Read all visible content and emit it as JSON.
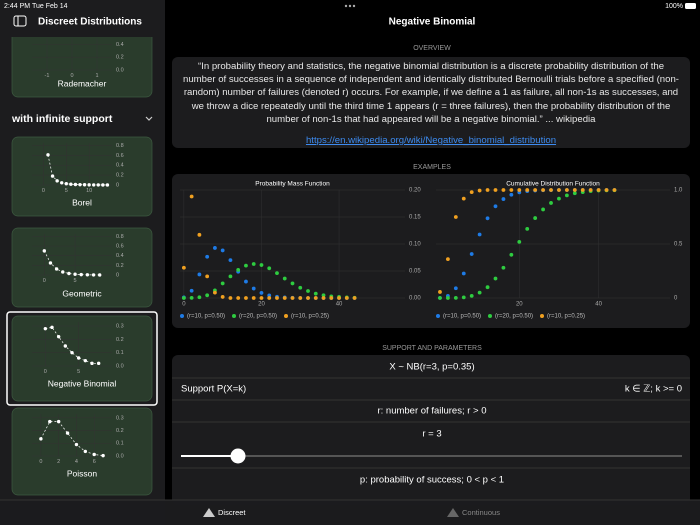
{
  "status_bar": {
    "time": "2:44 PM",
    "date": "Tue Feb 14",
    "battery": "100%"
  },
  "sidebar": {
    "title": "Discreet Distributions",
    "section": "with infinite support",
    "items": [
      {
        "label": "Rademacher",
        "chart": {
          "type": "line",
          "color": "#ffffff",
          "grid": true,
          "xlim": [
            -1.6,
            1.6
          ],
          "ylim": [
            0,
            0.5
          ],
          "xticks": [
            -1,
            0,
            1
          ],
          "yticks": [
            0.4,
            0.2,
            {
              "value": 0,
              "label": "0.0"
            }
          ]
        }
      },
      {
        "label": "Borel",
        "chart": {
          "type": "line",
          "color": "#ffffff",
          "grid": true,
          "xlim": [
            -2.5,
            15
          ],
          "ylim": [
            0,
            0.85
          ],
          "xticks": [
            0,
            5,
            10
          ],
          "yticks": [
            0.8,
            0.6,
            0.4,
            0.2,
            0
          ],
          "x": [
            1,
            2,
            3,
            4,
            5,
            6,
            7,
            8,
            9,
            10,
            11,
            12,
            13,
            14
          ],
          "values": [
            0.61,
            0.18,
            0.084,
            0.045,
            0.026,
            0.016,
            0.01,
            0.007,
            0.005,
            0.003,
            0.002,
            0.002,
            0.001,
            0.001
          ]
        }
      },
      {
        "label": "Geometric",
        "chart": {
          "type": "line",
          "color": "#ffffff",
          "grid": true,
          "xlim": [
            -2,
            11
          ],
          "ylim": [
            0,
            0.85
          ],
          "xticks": [
            0,
            5
          ],
          "yticks": [
            0.8,
            0.6,
            0.4,
            0.2,
            0
          ],
          "x": [
            0,
            1,
            2,
            3,
            4,
            5,
            6,
            7,
            8,
            9
          ],
          "values": [
            0.5,
            0.25,
            0.125,
            0.0625,
            0.031,
            0.016,
            0.008,
            0.004,
            0.002,
            0.001
          ]
        }
      },
      {
        "label": "Negative Binomial",
        "chart": {
          "type": "line",
          "color": "#ffffff",
          "grid": true,
          "xlim": [
            -2,
            10
          ],
          "ylim": [
            0,
            0.33
          ],
          "xticks": [
            0,
            5
          ],
          "yticks": [
            0.3,
            0.2,
            0.1,
            {
              "value": 0,
              "label": "0.0"
            }
          ],
          "x": [
            0,
            1,
            2,
            3,
            4,
            5,
            6,
            7,
            8
          ],
          "values": [
            0.28,
            0.29,
            0.22,
            0.15,
            0.1,
            0.06,
            0.04,
            0.02,
            0.02
          ]
        }
      },
      {
        "label": "Poisson",
        "chart": {
          "type": "line",
          "color": "#ffffff",
          "grid": true,
          "xlim": [
            -1,
            8
          ],
          "ylim": [
            0,
            0.33
          ],
          "xticks": [
            0,
            2,
            4,
            6
          ],
          "yticks": [
            0.3,
            0.2,
            0.1,
            {
              "value": 0,
              "label": "0.0"
            }
          ],
          "x": [
            0,
            1,
            2,
            3,
            4,
            5,
            6,
            7
          ],
          "values": [
            0.135,
            0.27,
            0.27,
            0.18,
            0.09,
            0.036,
            0.012,
            0.003
          ]
        }
      }
    ]
  },
  "main": {
    "title": "Negative Binomial",
    "overview": {
      "heading": "OVERVIEW",
      "text": "“In probability theory and statistics, the negative binomial distribution is a discrete probability distribution of the number of successes in a sequence of independent and identically distributed Bernoulli trials before a specified (non-random) number of failures (denoted r) occurs. For example, if we define a 1 as failure, all non-1s as successes, and we throw a dice repeatedly until the third time 1 appears (r = three failures), then the probability distribution of the number of non-1s that had appeared will be a negative binomial.” ... wikipedia",
      "link": "https://en.wikipedia.org/wiki/Negative_binomial_distribution"
    },
    "examples": {
      "heading": "EXAMPLES"
    },
    "parameters": {
      "heading": "SUPPORT AND PARAMETERS",
      "formula": "X ~ NB(r=3, p=0.35)",
      "support_label": "Support P(X=k)",
      "support_value": "k ∈ ℤ; k >= 0",
      "r_label": "r: number of failures; r > 0",
      "r_value": "r = 3",
      "p_label": "p: probability of success; 0 < p < 1"
    }
  },
  "chart_data": [
    {
      "type": "scatter",
      "title": "Probability Mass Function",
      "grid": true,
      "xlim": [
        -1,
        57
      ],
      "ylim": [
        0,
        0.2
      ],
      "xticks": [
        0,
        20,
        40
      ],
      "yticks": [
        {
          "value": 0,
          "label": "0.00"
        },
        {
          "value": 0.05,
          "label": "0.05"
        },
        {
          "value": 0.1,
          "label": "0.10"
        },
        {
          "value": 0.15,
          "label": "0.15"
        },
        {
          "value": 0.2,
          "label": "0.20"
        }
      ],
      "x": [
        0,
        2,
        4,
        6,
        8,
        10,
        12,
        14,
        16,
        18,
        20,
        22,
        24,
        26,
        28,
        30,
        32,
        34,
        36,
        38,
        40,
        42,
        44
      ],
      "series": [
        {
          "name": "(r=10, p=0.50)",
          "color": "#1e7be6",
          "values": [
            0.001,
            0.0134,
            0.0436,
            0.0764,
            0.0927,
            0.0881,
            0.0701,
            0.0487,
            0.0304,
            0.0175,
            0.0094,
            0.0047,
            0.0022,
            0.001,
            0.0004,
            0,
            0,
            0,
            0,
            0,
            0,
            0,
            0
          ]
        },
        {
          "name": "(r=20, p=0.50)",
          "color": "#2ecc40",
          "values": [
            0,
            0.0002,
            0.0014,
            0.005,
            0.014,
            0.027,
            0.04,
            0.052,
            0.06,
            0.063,
            0.061,
            0.055,
            0.046,
            0.036,
            0.027,
            0.019,
            0.013,
            0.008,
            0.005,
            0.003,
            0.002,
            0.001,
            0.0005
          ]
        },
        {
          "name": "(r=10, p=0.25)",
          "color": "#f0a020",
          "values": [
            0.056,
            0.188,
            0.117,
            0.04,
            0.01,
            0.002,
            0,
            0,
            0,
            0,
            0,
            0,
            0,
            0,
            0,
            0,
            0,
            0,
            0,
            0,
            0,
            0,
            0
          ]
        }
      ]
    },
    {
      "type": "scatter",
      "title": "Cumulative Distribution Function",
      "grid": true,
      "xlim": [
        -1,
        58
      ],
      "ylim": [
        0,
        1
      ],
      "xticks": [
        20,
        40
      ],
      "yticks": [
        0,
        0.5,
        {
          "value": 1,
          "label": "1.0"
        }
      ],
      "x": [
        0,
        2,
        4,
        6,
        8,
        10,
        12,
        14,
        16,
        18,
        20,
        22,
        24,
        26,
        28,
        30,
        32,
        34,
        36,
        38,
        40,
        42,
        44
      ],
      "series": [
        {
          "name": "(r=10, p=0.50)",
          "color": "#1e7be6",
          "values": [
            0.001,
            0.019,
            0.09,
            0.227,
            0.407,
            0.588,
            0.738,
            0.849,
            0.916,
            0.956,
            0.978,
            0.99,
            0.995,
            0.998,
            0.999,
            1,
            1,
            1,
            1,
            1,
            1,
            1,
            1
          ]
        },
        {
          "name": "(r=20, p=0.50)",
          "color": "#2ecc40",
          "values": [
            0,
            0,
            0.001,
            0.006,
            0.02,
            0.05,
            0.1,
            0.18,
            0.28,
            0.4,
            0.52,
            0.64,
            0.74,
            0.82,
            0.88,
            0.92,
            0.95,
            0.97,
            0.98,
            0.99,
            0.995,
            0.997,
            0.998
          ]
        },
        {
          "name": "(r=10, p=0.25)",
          "color": "#f0a020",
          "values": [
            0.056,
            0.36,
            0.75,
            0.92,
            0.98,
            0.995,
            1,
            1,
            1,
            1,
            1,
            1,
            1,
            1,
            1,
            1,
            1,
            1,
            1,
            1,
            1,
            1,
            1
          ]
        }
      ]
    }
  ],
  "tab_bar": {
    "tabs": [
      "Discreet",
      "Continuous"
    ]
  }
}
